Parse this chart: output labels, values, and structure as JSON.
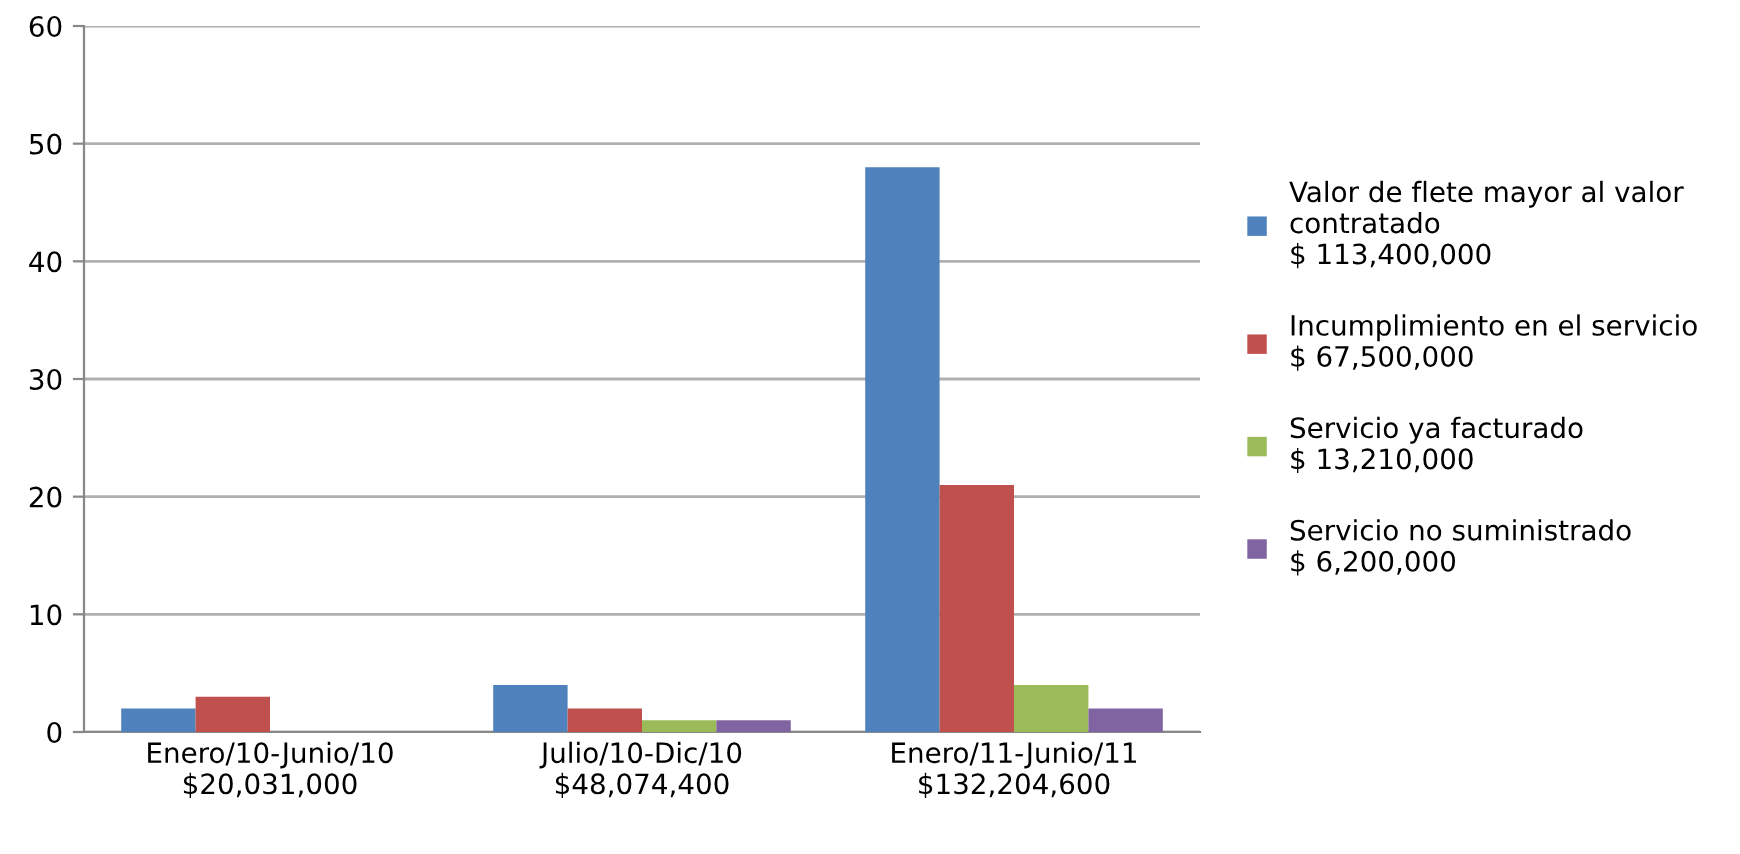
{
  "chart_data": {
    "type": "bar",
    "categories": [
      "Enero/10-Junio/10\n$20,031,000",
      "Julio/10-Dic/10\n$48,074,400",
      "Enero/11-Junio/11\n$132,204,600"
    ],
    "series": [
      {
        "name": "Valor de flete mayor al valor\ncontratado\n$ 113,400,000",
        "color": "#4f81bd",
        "values": [
          2,
          4,
          48
        ]
      },
      {
        "name": "Incumplimiento en el servicio\n$ 67,500,000",
        "color": "#c0504d",
        "values": [
          3,
          2,
          21
        ]
      },
      {
        "name": "Servicio ya facturado\n$ 13,210,000",
        "color": "#9bbb59",
        "values": [
          0,
          1,
          4
        ]
      },
      {
        "name": "Servicio no suministrado\n$ 6,200,000",
        "color": "#8064a2",
        "values": [
          0,
          1,
          2
        ]
      }
    ],
    "ylim": [
      0,
      60
    ],
    "yticks": [
      0,
      10,
      20,
      30,
      40,
      50,
      60
    ],
    "grid": "y",
    "legend": "right"
  }
}
